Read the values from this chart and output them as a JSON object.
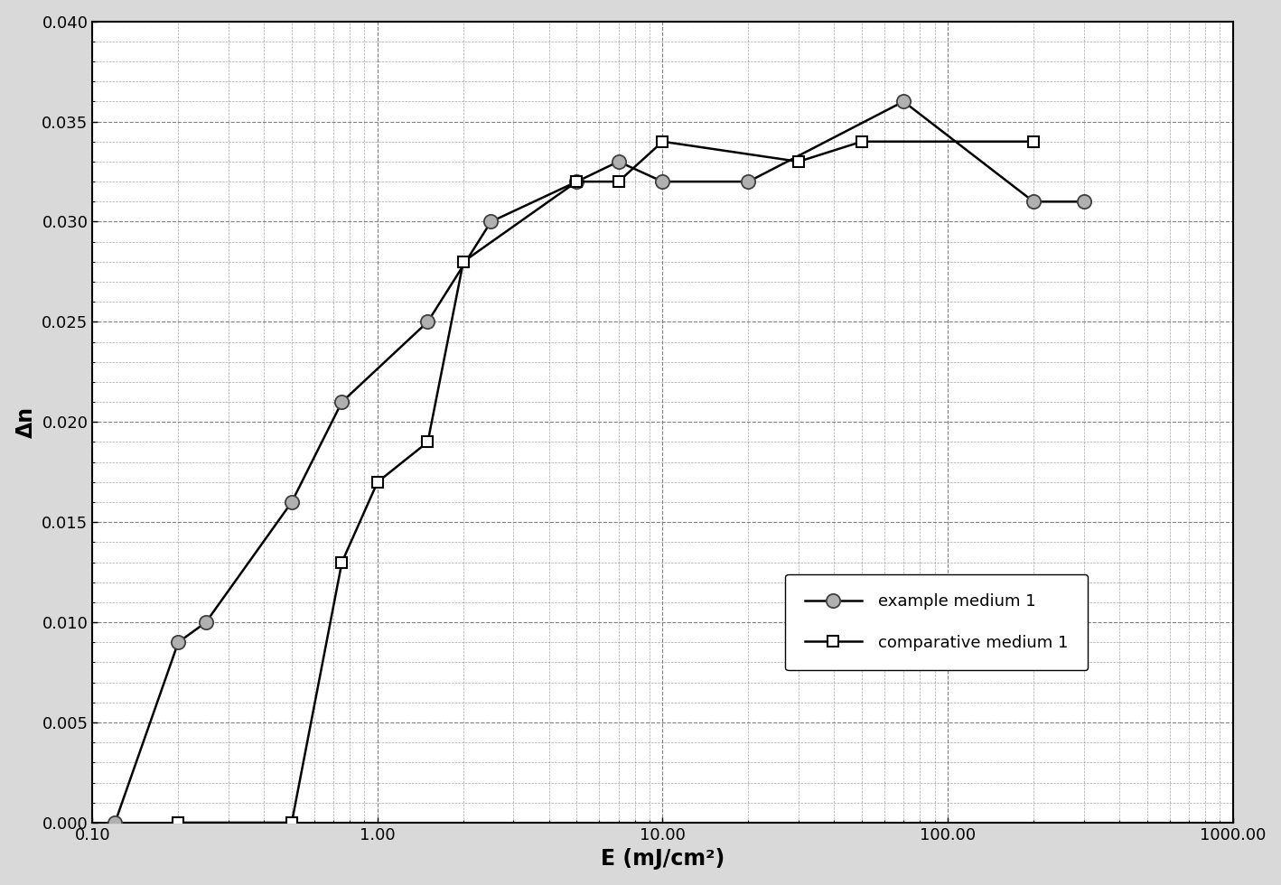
{
  "title": "",
  "xlabel": "E (mJ/cm²)",
  "ylabel": "Δn",
  "xlim": [
    0.1,
    1000.0
  ],
  "ylim": [
    0.0,
    0.04
  ],
  "yticks": [
    0.0,
    0.005,
    0.01,
    0.015,
    0.02,
    0.025,
    0.03,
    0.035,
    0.04
  ],
  "xtick_positions": [
    0.1,
    1.0,
    10.0,
    100.0,
    1000.0
  ],
  "xtick_labels": [
    "0.10",
    "1.00",
    "10.00",
    "100.00",
    "1000.00"
  ],
  "example_x": [
    0.12,
    0.2,
    0.25,
    0.5,
    0.75,
    1.5,
    2.5,
    5.0,
    7.0,
    10.0,
    20.0,
    70.0,
    200.0,
    300.0
  ],
  "example_y": [
    0.0,
    0.009,
    0.01,
    0.016,
    0.021,
    0.025,
    0.03,
    0.032,
    0.033,
    0.032,
    0.032,
    0.036,
    0.031,
    0.031
  ],
  "comparative_x": [
    0.2,
    0.5,
    0.75,
    1.0,
    1.5,
    2.0,
    5.0,
    7.0,
    10.0,
    30.0,
    50.0,
    200.0
  ],
  "comparative_y": [
    0.0,
    0.0,
    0.013,
    0.017,
    0.019,
    0.028,
    0.032,
    0.032,
    0.034,
    0.033,
    0.034,
    0.034
  ],
  "plot_bg_color": "#ffffff",
  "fig_bg_color": "#d9d9d9",
  "grid_color": "#808080",
  "grid_linestyle": "--",
  "line_width": 1.8,
  "marker_size_circle": 11,
  "marker_size_square": 9,
  "xlabel_fontsize": 17,
  "ylabel_fontsize": 17,
  "tick_fontsize": 13,
  "legend_fontsize": 13
}
